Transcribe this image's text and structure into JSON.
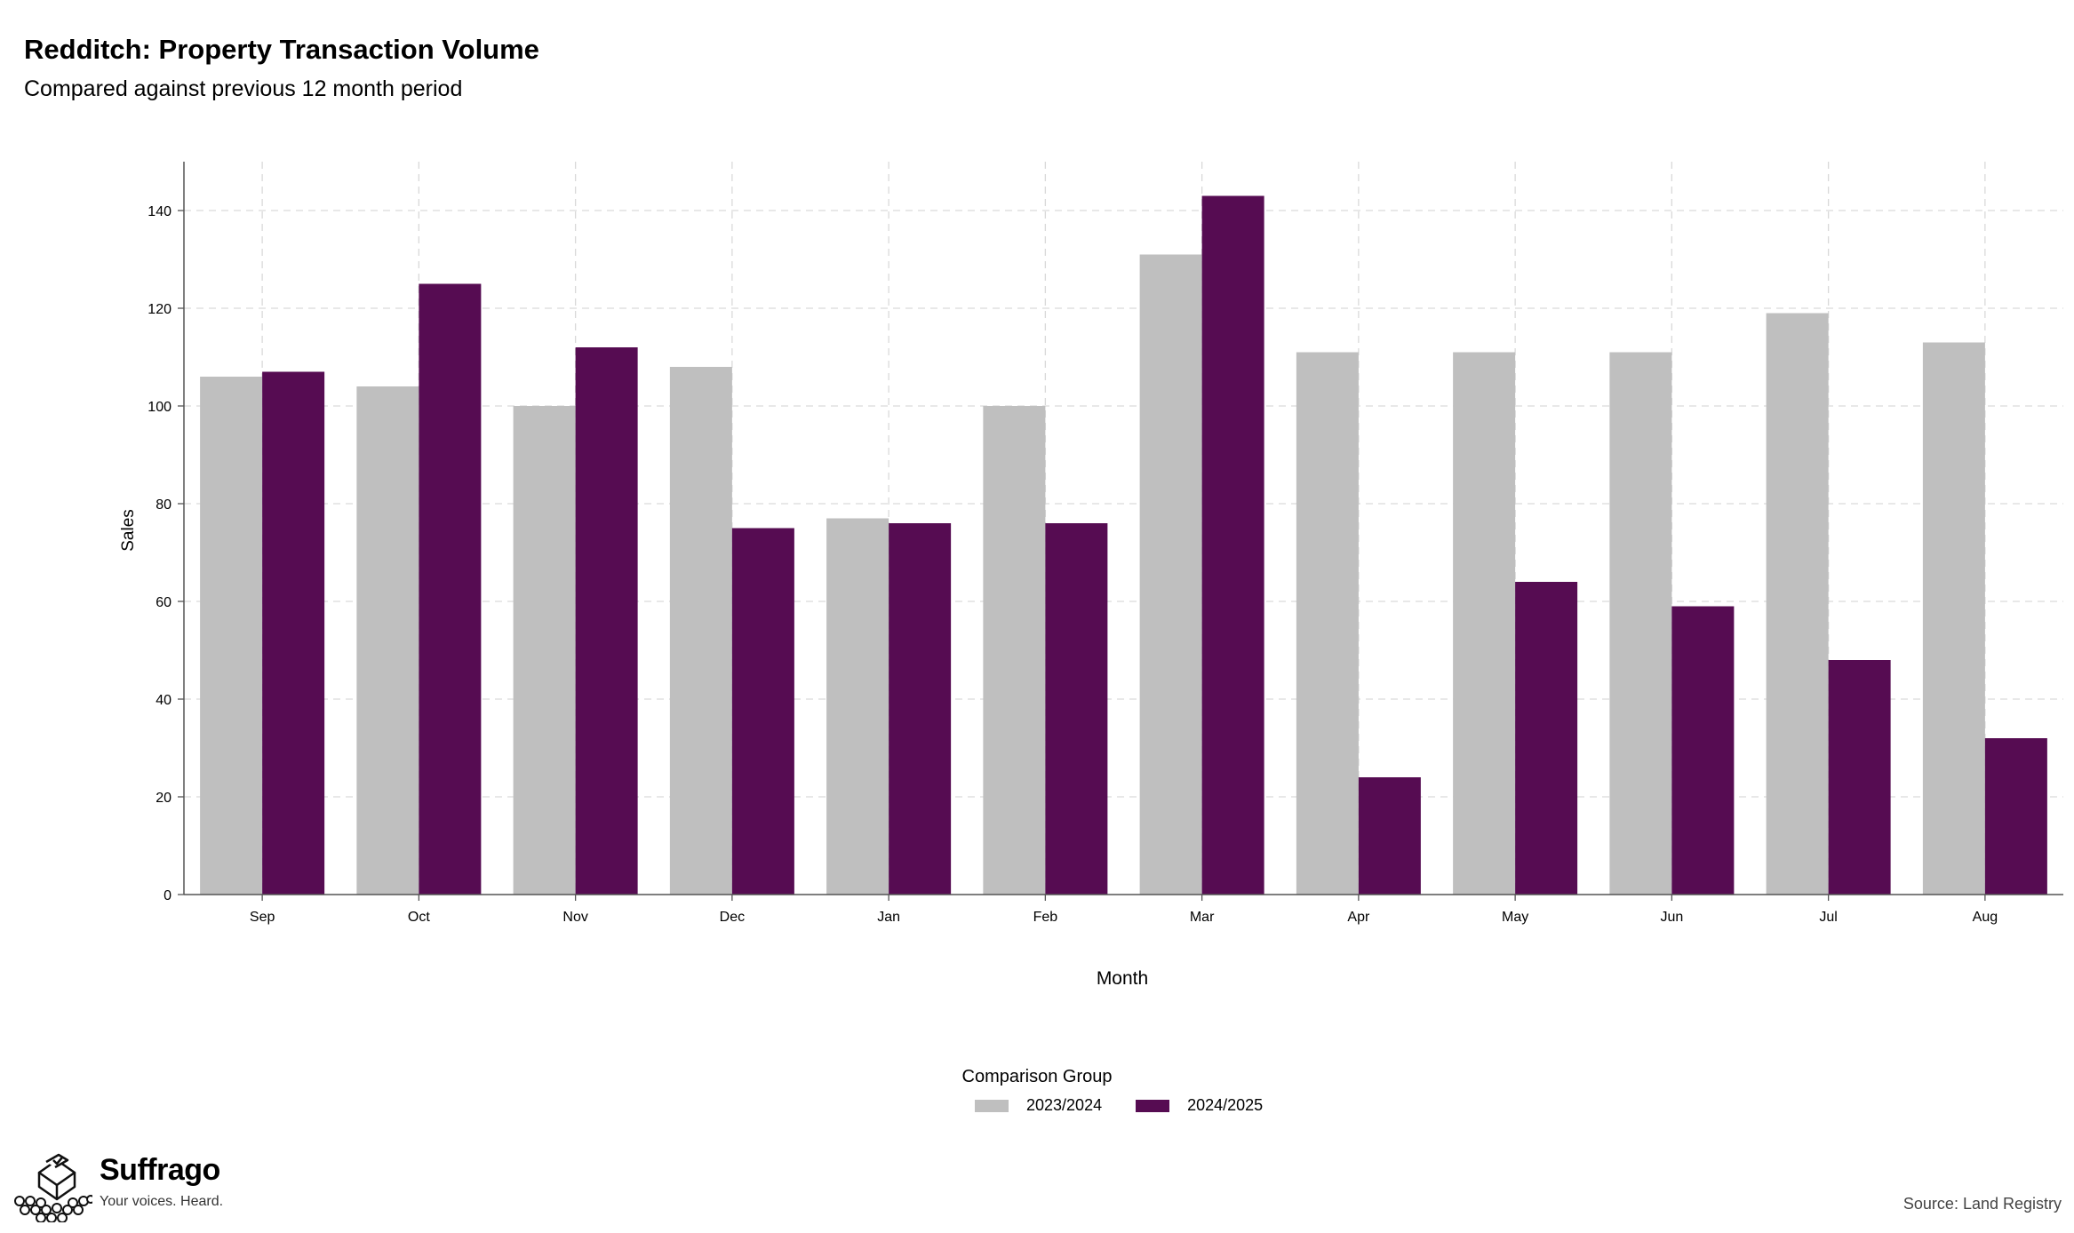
{
  "chart_data": {
    "type": "bar",
    "title": "Redditch: Property Transaction Volume",
    "subtitle": "Compared against previous 12 month period",
    "xlabel": "Month",
    "ylabel": "Sales",
    "ylim": [
      0,
      150
    ],
    "yticks": [
      0,
      20,
      40,
      60,
      80,
      100,
      120,
      140
    ],
    "categories": [
      "Sep",
      "Oct",
      "Nov",
      "Dec",
      "Jan",
      "Feb",
      "Mar",
      "Apr",
      "May",
      "Jun",
      "Jul",
      "Aug"
    ],
    "series": [
      {
        "name": "2023/2024",
        "color": "#bfbfbf",
        "values": [
          106,
          104,
          100,
          108,
          77,
          100,
          131,
          111,
          111,
          111,
          119,
          113
        ]
      },
      {
        "name": "2024/2025",
        "color": "#560c52",
        "values": [
          107,
          125,
          112,
          75,
          76,
          76,
          143,
          24,
          64,
          59,
          48,
          32
        ]
      }
    ],
    "grid": true,
    "legend_title": "Comparison Group",
    "legend_position": "bottom"
  },
  "branding": {
    "name": "Suffrago",
    "tagline": "Your voices. Heard.",
    "icon": "ballot-box-icon"
  },
  "source": "Source: Land Registry"
}
